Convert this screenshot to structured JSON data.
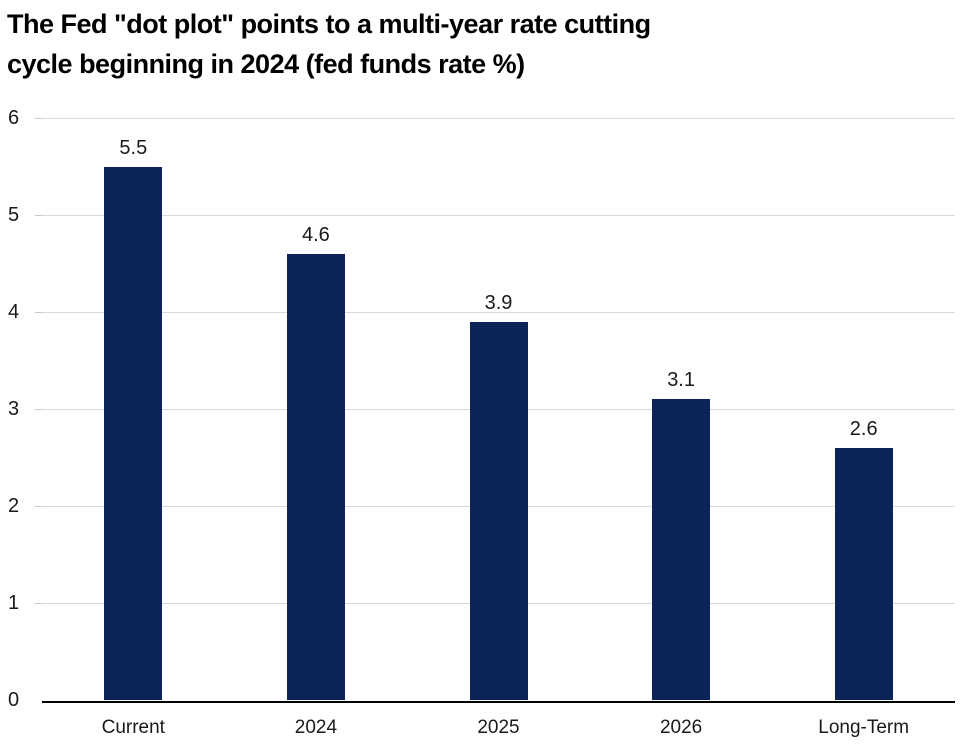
{
  "chart_data": {
    "type": "bar",
    "title": "The Fed \"dot plot\" points to a multi-year rate cutting cycle beginning in 2024 (fed funds rate %)",
    "title_line1": "The Fed \"dot plot\" points to a multi-year rate cutting",
    "title_line2": "cycle beginning in 2024 (fed funds rate %)",
    "categories": [
      "Current",
      "2024",
      "2025",
      "2026",
      "Long-Term"
    ],
    "values": [
      5.5,
      4.6,
      3.9,
      3.1,
      2.6
    ],
    "value_labels": [
      "5.5",
      "4.6",
      "3.9",
      "3.1",
      "2.6"
    ],
    "xlabel": "",
    "ylabel": "",
    "ylim": [
      0,
      6
    ],
    "yticks": [
      0,
      1,
      2,
      3,
      4,
      5,
      6
    ],
    "grid": "horizontal",
    "legend": "none",
    "colors": {
      "bar": "#0a2458",
      "gridline": "#d9d9d9",
      "tick": "#c8c8c8",
      "axis_line": "#000000",
      "label_text": "#1a1a1a",
      "title_text": "#000000",
      "background": "#ffffff"
    }
  }
}
